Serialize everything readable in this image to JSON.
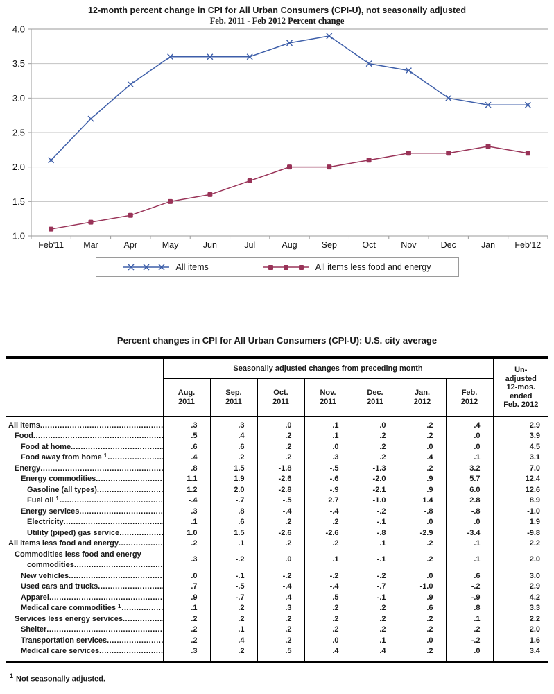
{
  "chart": {
    "title": "12-month percent change in CPI for All Urban Consumers (CPI-U), not seasonally adjusted",
    "subtitle": "Feb. 2011 - Feb 2012  Percent change"
  },
  "chart_data": {
    "type": "line",
    "title": "12-month percent change in CPI for All Urban Consumers (CPI-U), not seasonally adjusted",
    "subtitle": "Feb. 2011 - Feb 2012  Percent change",
    "categories": [
      "Feb'11",
      "Mar",
      "Apr",
      "May",
      "Jun",
      "Jul",
      "Aug",
      "Sep",
      "Oct",
      "Nov",
      "Dec",
      "Jan",
      "Feb'12"
    ],
    "series": [
      {
        "name": "All items",
        "color": "#3d5ea9",
        "marker": "x",
        "values": [
          2.1,
          2.7,
          3.2,
          3.6,
          3.6,
          3.6,
          3.8,
          3.9,
          3.5,
          3.4,
          3.0,
          2.9,
          2.9
        ]
      },
      {
        "name": "All items less food and energy",
        "color": "#993358",
        "marker": "square",
        "values": [
          1.1,
          1.2,
          1.3,
          1.5,
          1.6,
          1.8,
          2.0,
          2.0,
          2.1,
          2.2,
          2.2,
          2.3,
          2.2
        ]
      }
    ],
    "ylim": [
      1.0,
      4.0
    ],
    "ytick_step": 0.5,
    "ytick_labels": [
      "4.0",
      "3.5",
      "3.0",
      "2.5",
      "2.0",
      "1.5",
      "1.0"
    ],
    "grid": true,
    "legend_position": "bottom",
    "grid_color": "#c3c3c3",
    "axis_color": "#9a9a9a"
  },
  "table": {
    "title": "Percent changes in CPI for All Urban Consumers (CPI-U): U.S. city average",
    "group_header": "Seasonally adjusted changes from preceding month",
    "month_columns": [
      [
        "Aug.",
        "2011"
      ],
      [
        "Sep.",
        "2011"
      ],
      [
        "Oct.",
        "2011"
      ],
      [
        "Nov.",
        "2011"
      ],
      [
        "Dec.",
        "2011"
      ],
      [
        "Jan.",
        "2012"
      ],
      [
        "Feb.",
        "2012"
      ]
    ],
    "last_column_lines": [
      "Un-",
      "adjusted",
      "12-mos.",
      "ended",
      "Feb. 2012"
    ],
    "rows": [
      {
        "label": "All items",
        "indent": 0,
        "values": [
          ".3",
          ".3",
          ".0",
          ".1",
          ".0",
          ".2",
          ".4"
        ],
        "annual": "2.9"
      },
      {
        "label": "Food",
        "indent": 1,
        "values": [
          ".5",
          ".4",
          ".2",
          ".1",
          ".2",
          ".2",
          ".0"
        ],
        "annual": "3.9"
      },
      {
        "label": "Food at home",
        "indent": 2,
        "values": [
          ".6",
          ".6",
          ".2",
          ".0",
          ".2",
          ".0",
          ".0"
        ],
        "annual": "4.5"
      },
      {
        "label": "Food away from home",
        "indent": 2,
        "sup": true,
        "values": [
          ".4",
          ".2",
          ".2",
          ".3",
          ".2",
          ".4",
          ".1"
        ],
        "annual": "3.1"
      },
      {
        "label": "Energy",
        "indent": 1,
        "values": [
          ".8",
          "1.5",
          "-1.8",
          "-.5",
          "-1.3",
          ".2",
          "3.2"
        ],
        "annual": "7.0"
      },
      {
        "label": "Energy commodities",
        "indent": 2,
        "values": [
          "1.1",
          "1.9",
          "-2.6",
          "-.6",
          "-2.0",
          ".9",
          "5.7"
        ],
        "annual": "12.4"
      },
      {
        "label": "Gasoline (all types)",
        "indent": 3,
        "values": [
          "1.2",
          "2.0",
          "-2.8",
          "-.9",
          "-2.1",
          ".9",
          "6.0"
        ],
        "annual": "12.6"
      },
      {
        "label": "Fuel oil",
        "indent": 3,
        "sup": true,
        "values": [
          "-.4",
          "-.7",
          "-.5",
          "2.7",
          "-1.0",
          "1.4",
          "2.8"
        ],
        "annual": "8.9"
      },
      {
        "label": "Energy services",
        "indent": 2,
        "values": [
          ".3",
          ".8",
          "-.4",
          "-.4",
          "-.2",
          "-.8",
          "-.8"
        ],
        "annual": "-1.0"
      },
      {
        "label": "Electricity",
        "indent": 3,
        "values": [
          ".1",
          ".6",
          ".2",
          ".2",
          "-.1",
          ".0",
          ".0"
        ],
        "annual": "1.9"
      },
      {
        "label": "Utility (piped) gas service",
        "indent": 3,
        "values": [
          "1.0",
          "1.5",
          "-2.6",
          "-2.6",
          "-.8",
          "-2.9",
          "-3.4"
        ],
        "annual": "-9.8"
      },
      {
        "label": "All items less food and energy",
        "indent": 0,
        "values": [
          ".2",
          ".1",
          ".2",
          ".2",
          ".1",
          ".2",
          ".1"
        ],
        "annual": "2.2"
      },
      {
        "label": "Commodities less food and energy",
        "label2": "commodities",
        "indent": 1,
        "values": [
          ".3",
          "-.2",
          ".0",
          ".1",
          "-.1",
          ".2",
          ".1"
        ],
        "annual": "2.0"
      },
      {
        "label": "New vehicles",
        "indent": 2,
        "values": [
          ".0",
          "-.1",
          "-.2",
          "-.2",
          "-.2",
          ".0",
          ".6"
        ],
        "annual": "3.0"
      },
      {
        "label": "Used cars and trucks",
        "indent": 2,
        "values": [
          ".7",
          "-.5",
          "-.4",
          "-.4",
          "-.7",
          "-1.0",
          "-.2"
        ],
        "annual": "2.9"
      },
      {
        "label": "Apparel",
        "indent": 2,
        "values": [
          ".9",
          "-.7",
          ".4",
          ".5",
          "-.1",
          ".9",
          "-.9"
        ],
        "annual": "4.2"
      },
      {
        "label": "Medical care commodities",
        "indent": 2,
        "sup": true,
        "values": [
          ".1",
          ".2",
          ".3",
          ".2",
          ".2",
          ".6",
          ".8"
        ],
        "annual": "3.3"
      },
      {
        "label": "Services less energy services",
        "indent": 1,
        "values": [
          ".2",
          ".2",
          ".2",
          ".2",
          ".2",
          ".2",
          ".1"
        ],
        "annual": "2.2"
      },
      {
        "label": "Shelter",
        "indent": 2,
        "values": [
          ".2",
          ".1",
          ".2",
          ".2",
          ".2",
          ".2",
          ".2"
        ],
        "annual": "2.0"
      },
      {
        "label": "Transportation services",
        "indent": 2,
        "values": [
          ".2",
          ".4",
          ".2",
          ".0",
          ".1",
          ".0",
          "-.2"
        ],
        "annual": "1.6"
      },
      {
        "label": "Medical care services",
        "indent": 2,
        "values": [
          ".3",
          ".2",
          ".5",
          ".4",
          ".4",
          ".2",
          ".0"
        ],
        "annual": "3.4"
      }
    ],
    "footnote": {
      "marker": "1",
      "text": "Not seasonally adjusted."
    }
  }
}
